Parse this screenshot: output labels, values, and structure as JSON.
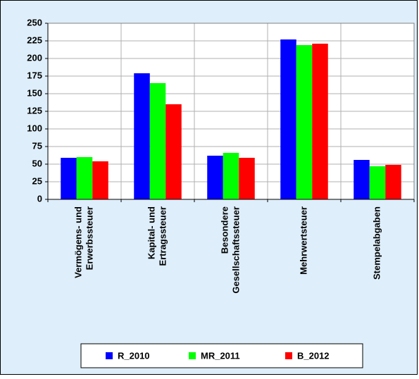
{
  "chart_data": {
    "type": "bar",
    "categories": [
      [
        "Vermögens- und",
        "Erwerbssteuer"
      ],
      [
        "Kapital- und",
        "Ertragssteuer"
      ],
      [
        "Besondere",
        "Gesellschaftssteuer"
      ],
      [
        "Mehrwertsteuer"
      ],
      [
        "Stempelabgaben"
      ]
    ],
    "series": [
      {
        "name": "R_2010",
        "color": "#0000ff",
        "values": [
          59,
          179,
          62,
          227,
          56
        ]
      },
      {
        "name": "MR_2011",
        "color": "#00ff00",
        "values": [
          60,
          165,
          66,
          219,
          47
        ]
      },
      {
        "name": "B_2012",
        "color": "#ff0000",
        "values": [
          54,
          135,
          59,
          221,
          49
        ]
      }
    ],
    "ylim": [
      0,
      250
    ],
    "yticks": [
      0,
      25,
      50,
      75,
      100,
      125,
      150,
      175,
      200,
      225,
      250
    ],
    "grid": true,
    "legend": "bottom"
  }
}
